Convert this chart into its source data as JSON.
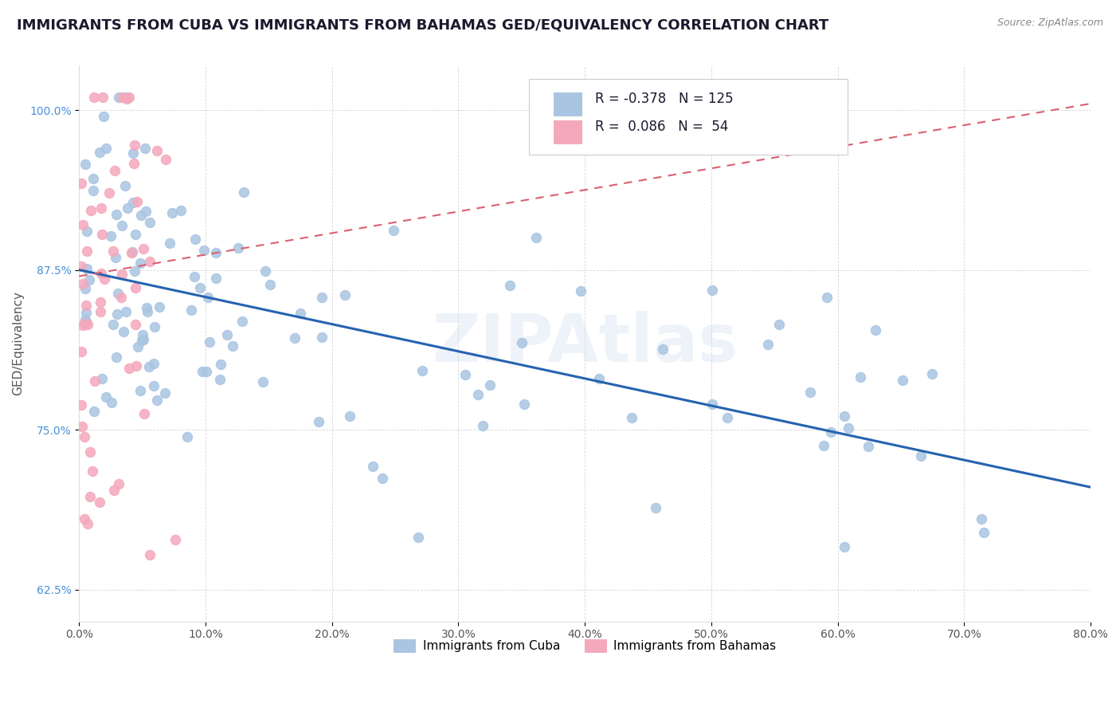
{
  "title": "IMMIGRANTS FROM CUBA VS IMMIGRANTS FROM BAHAMAS GED/EQUIVALENCY CORRELATION CHART",
  "source": "Source: ZipAtlas.com",
  "ylabel": "GED/Equivalency",
  "xlim": [
    0.0,
    80.0
  ],
  "ylim": [
    60.0,
    103.5
  ],
  "yticks": [
    62.5,
    75.0,
    87.5,
    100.0
  ],
  "xticks": [
    0.0,
    10.0,
    20.0,
    30.0,
    40.0,
    50.0,
    60.0,
    70.0,
    80.0
  ],
  "legend_cuba_R": "-0.378",
  "legend_cuba_N": "125",
  "legend_bahamas_R": "0.086",
  "legend_bahamas_N": "54",
  "cuba_color": "#aac5e2",
  "bahamas_color": "#f5a8bc",
  "cuba_line_color": "#2563b0",
  "bahamas_line_color": "#d96070",
  "watermark": "ZIPAtlas",
  "background_color": "#ffffff",
  "title_color": "#1a1a2e",
  "title_fontsize": 13,
  "cuba_line_x0": 0.0,
  "cuba_line_y0": 87.5,
  "cuba_line_x1": 80.0,
  "cuba_line_y1": 70.5,
  "bah_line_x0": 0.0,
  "bah_line_y0": 87.0,
  "bah_line_x1": 80.0,
  "bah_line_y1": 100.5,
  "legend_label_cuba": "Immigrants from Cuba",
  "legend_label_bahamas": "Immigrants from Bahamas"
}
